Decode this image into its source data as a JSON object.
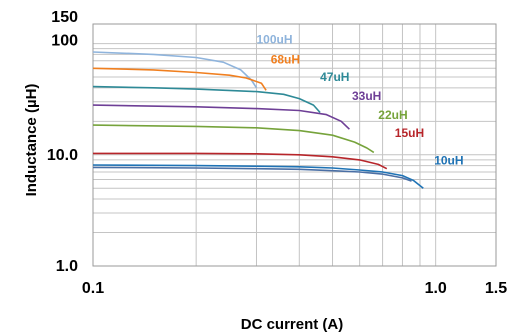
{
  "chart_data": {
    "type": "line",
    "title": "",
    "xlabel": "DC current (A)",
    "ylabel": "Inductance (µH)",
    "x_scale": "log",
    "y_scale": "log",
    "xlim": [
      0.1,
      1.5
    ],
    "ylim": [
      1.0,
      150
    ],
    "grid": true,
    "x_ticks": [
      {
        "value": 0.1,
        "label": "0.1"
      },
      {
        "value": 1.0,
        "label": "1.0"
      },
      {
        "value": 1.5,
        "label": "1.5"
      }
    ],
    "y_ticks": [
      {
        "value": 1.0,
        "label": "1.0"
      },
      {
        "value": 10,
        "label": "10.0"
      },
      {
        "value": 100,
        "label": "100"
      },
      {
        "value": 150,
        "label": "150"
      }
    ],
    "series": [
      {
        "name": "100uH",
        "color": "#8fb4dc",
        "label_at": [
          0.3,
          100
        ],
        "points": [
          [
            0.1,
            84
          ],
          [
            0.15,
            80
          ],
          [
            0.2,
            75
          ],
          [
            0.24,
            68
          ],
          [
            0.27,
            58
          ],
          [
            0.29,
            47
          ],
          [
            0.3,
            40
          ]
        ]
      },
      {
        "name": "68uH",
        "color": "#f07f1f",
        "label_at": [
          0.33,
          66
        ],
        "points": [
          [
            0.1,
            60
          ],
          [
            0.15,
            58
          ],
          [
            0.2,
            55
          ],
          [
            0.25,
            52
          ],
          [
            0.28,
            49
          ],
          [
            0.31,
            44
          ],
          [
            0.32,
            38
          ]
        ]
      },
      {
        "name": "47uH",
        "color": "#2e8a97",
        "label_at": [
          0.46,
          46
        ],
        "points": [
          [
            0.1,
            41
          ],
          [
            0.15,
            40
          ],
          [
            0.2,
            39
          ],
          [
            0.3,
            37
          ],
          [
            0.36,
            35
          ],
          [
            0.4,
            32
          ],
          [
            0.44,
            28
          ],
          [
            0.46,
            24
          ]
        ]
      },
      {
        "name": "33uH",
        "color": "#6e3f96",
        "label_at": [
          0.57,
          31
        ],
        "points": [
          [
            0.1,
            28
          ],
          [
            0.2,
            27
          ],
          [
            0.3,
            26
          ],
          [
            0.4,
            25
          ],
          [
            0.48,
            23
          ],
          [
            0.53,
            20
          ],
          [
            0.56,
            17
          ]
        ]
      },
      {
        "name": "22uH",
        "color": "#76a33b",
        "label_at": [
          0.68,
          21
        ],
        "points": [
          [
            0.1,
            18.5
          ],
          [
            0.2,
            18
          ],
          [
            0.3,
            17.5
          ],
          [
            0.4,
            16.5
          ],
          [
            0.5,
            15
          ],
          [
            0.58,
            13
          ],
          [
            0.63,
            11.5
          ],
          [
            0.66,
            10.5
          ]
        ]
      },
      {
        "name": "15uH",
        "color": "#b7252a",
        "label_at": [
          0.76,
          14.5
        ],
        "points": [
          [
            0.1,
            10.3
          ],
          [
            0.2,
            10.3
          ],
          [
            0.3,
            10.2
          ],
          [
            0.4,
            10.0
          ],
          [
            0.5,
            9.6
          ],
          [
            0.6,
            9.0
          ],
          [
            0.68,
            8.2
          ],
          [
            0.72,
            7.5
          ]
        ]
      },
      {
        "name": "10uH",
        "color": "#1f73b5",
        "label_at": [
          0.99,
          8.2
        ],
        "points": [
          [
            0.1,
            8.1
          ],
          [
            0.2,
            8.0
          ],
          [
            0.3,
            7.9
          ],
          [
            0.4,
            7.8
          ],
          [
            0.5,
            7.6
          ],
          [
            0.6,
            7.3
          ],
          [
            0.7,
            7.0
          ],
          [
            0.8,
            6.5
          ],
          [
            0.86,
            5.9
          ],
          [
            0.92,
            5.0
          ]
        ]
      },
      {
        "name": "",
        "color": "#4a6fa5",
        "label_at": null,
        "points": [
          [
            0.1,
            7.7
          ],
          [
            0.2,
            7.6
          ],
          [
            0.3,
            7.5
          ],
          [
            0.4,
            7.4
          ],
          [
            0.5,
            7.2
          ],
          [
            0.6,
            7.0
          ],
          [
            0.7,
            6.7
          ],
          [
            0.8,
            6.2
          ],
          [
            0.85,
            5.8
          ]
        ]
      }
    ]
  }
}
